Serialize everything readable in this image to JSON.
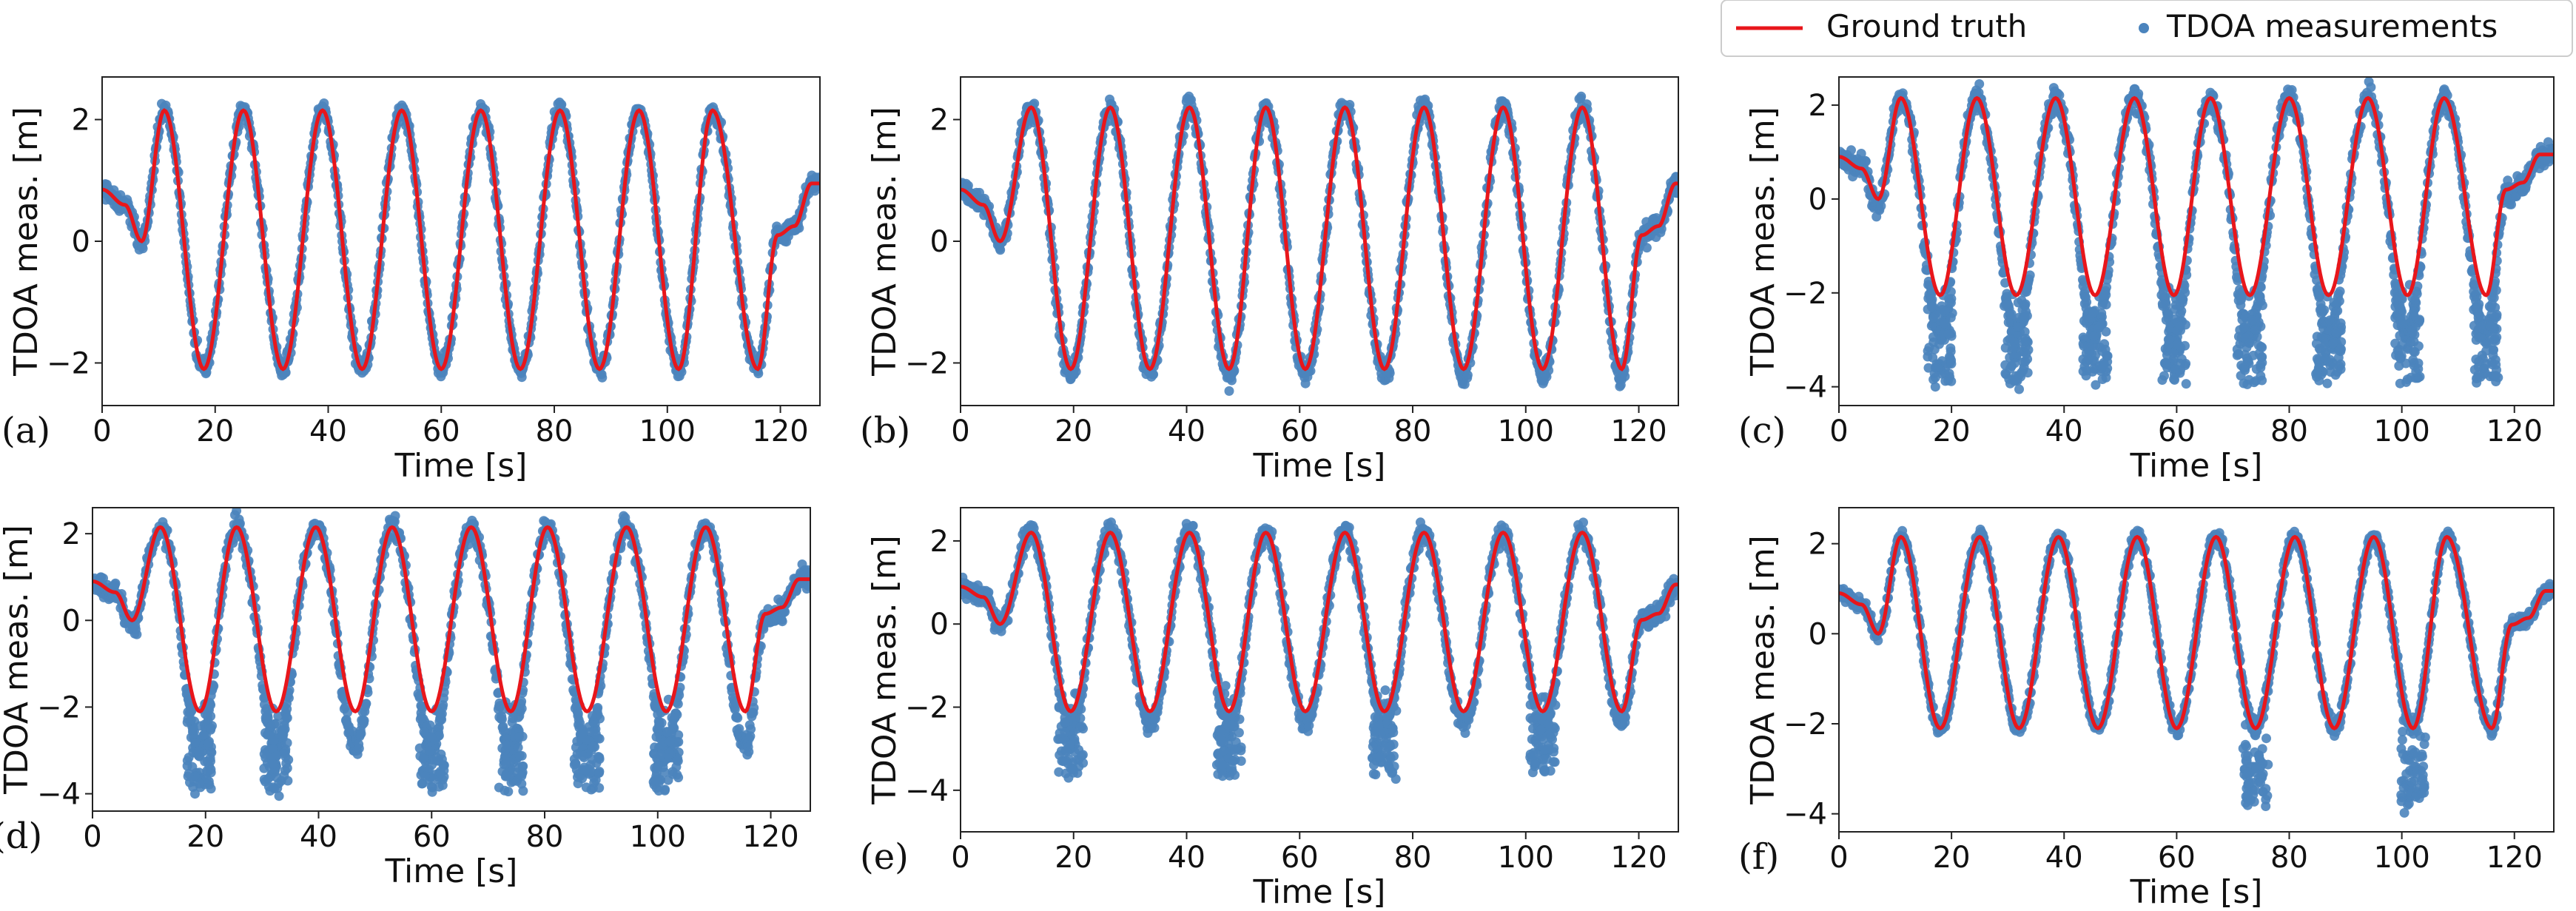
{
  "legend": {
    "items": [
      {
        "label": "Ground truth",
        "kind": "line",
        "color": "#e8161b"
      },
      {
        "label": "TDOA measurements",
        "kind": "marker",
        "color": "#4b84bd"
      }
    ],
    "position": "top-right"
  },
  "colors": {
    "ground_truth": "#e8161b",
    "measurements": "#4b84bd",
    "axes": "#222222"
  },
  "chart_data": [
    {
      "id": "a",
      "panel_label": "(a)",
      "type": "scatter+line",
      "xlabel": "Time [s]",
      "ylabel": "TDOA meas. [m]",
      "xlim": [
        0,
        127
      ],
      "ylim": [
        -2.7,
        2.7
      ],
      "xticks": [
        0,
        20,
        40,
        60,
        80,
        100,
        120
      ],
      "yticks": [
        -2,
        0,
        2
      ],
      "ground_truth": {
        "start_value": 0.85,
        "dip_start": 0.0,
        "peak_times": [
          11,
          25,
          39,
          53,
          67,
          81,
          95,
          108
        ],
        "amplitude": 2.15,
        "trough_times": [
          18,
          32,
          46,
          60,
          74,
          88,
          102,
          116
        ],
        "trough_depth": -2.1,
        "end_flat": 0.1,
        "end_value": 0.95
      },
      "measurements": {
        "offset": 0.0,
        "spread": 0.15,
        "outlier_depth": 0.0,
        "outlier_troughs": []
      }
    },
    {
      "id": "b",
      "panel_label": "(b)",
      "type": "scatter+line",
      "xlabel": "Time [s]",
      "ylabel": "TDOA meas. [m]",
      "xlim": [
        0,
        127
      ],
      "ylim": [
        -2.7,
        2.7
      ],
      "xticks": [
        0,
        20,
        40,
        60,
        80,
        100,
        120
      ],
      "yticks": [
        -2,
        0,
        2
      ],
      "ground_truth": {
        "start_value": 0.85,
        "dip_start": 0.0,
        "peak_times": [
          12.5,
          26.5,
          40.5,
          54,
          68,
          82,
          96,
          110
        ],
        "amplitude": 2.2,
        "trough_times": [
          19.5,
          33.5,
          47.5,
          61,
          75,
          89,
          103,
          117
        ],
        "trough_depth": -2.1,
        "end_flat": 0.1,
        "end_value": 0.95
      },
      "measurements": {
        "offset": -0.1,
        "spread": 0.18,
        "outlier_depth": 0.0,
        "outlier_troughs": []
      }
    },
    {
      "id": "c",
      "panel_label": "(c)",
      "type": "scatter+line",
      "xlabel": "Time [s]",
      "ylabel": "TDOA meas. [m]",
      "xlim": [
        0,
        127
      ],
      "ylim": [
        -4.4,
        2.6
      ],
      "xticks": [
        0,
        20,
        40,
        60,
        80,
        100,
        120
      ],
      "yticks": [
        -4,
        -2,
        0,
        2
      ],
      "ground_truth": {
        "start_value": 0.9,
        "dip_start": 0.0,
        "peak_times": [
          11,
          24.5,
          38.5,
          52.5,
          66,
          80,
          94,
          107.5
        ],
        "amplitude": 2.15,
        "trough_times": [
          18,
          31.5,
          45.5,
          59.5,
          73,
          87,
          101,
          115
        ],
        "trough_depth": -2.05,
        "end_flat": 0.2,
        "end_value": 0.95
      },
      "measurements": {
        "offset": -0.8,
        "spread": 0.25,
        "outlier_depth": -3.9,
        "outlier_troughs": [
          18,
          31.5,
          45.5,
          59.5,
          73,
          87,
          101,
          115
        ]
      }
    },
    {
      "id": "d",
      "panel_label": "(d)",
      "type": "scatter+line",
      "xlabel": "Time [s]",
      "ylabel": "TDOA meas. [m]",
      "xlim": [
        0,
        127
      ],
      "ylim": [
        -4.4,
        2.6
      ],
      "xticks": [
        0,
        20,
        40,
        60,
        80,
        100,
        120
      ],
      "yticks": [
        -4,
        -2,
        0,
        2
      ],
      "ground_truth": {
        "start_value": 0.9,
        "dip_start": 0.0,
        "peak_times": [
          12,
          25.5,
          39.5,
          53,
          67,
          80.5,
          94.5,
          108.5
        ],
        "amplitude": 2.15,
        "trough_times": [
          19,
          32.5,
          46.5,
          60,
          74,
          87.5,
          101.5,
          115.5
        ],
        "trough_depth": -2.1,
        "end_flat": 0.15,
        "end_value": 0.95
      },
      "measurements": {
        "offset": -0.8,
        "spread": 0.25,
        "outlier_depth": -3.9,
        "outlier_troughs": [
          19,
          32.5,
          60,
          74,
          87.5,
          101.5
        ]
      }
    },
    {
      "id": "e",
      "panel_label": "(e)",
      "type": "scatter+line",
      "xlabel": "Time [s]",
      "ylabel": "TDOA meas. [m]",
      "xlim": [
        0,
        127
      ],
      "ylim": [
        -5.0,
        2.8
      ],
      "xticks": [
        0,
        20,
        40,
        60,
        80,
        100,
        120
      ],
      "yticks": [
        -4,
        -2,
        0,
        2
      ],
      "ground_truth": {
        "start_value": 0.9,
        "dip_start": 0.0,
        "peak_times": [
          12.5,
          26.5,
          40.5,
          54,
          68,
          82,
          96,
          110
        ],
        "amplitude": 2.2,
        "trough_times": [
          19.5,
          33.5,
          47.5,
          61,
          75,
          89,
          103,
          117
        ],
        "trough_depth": -2.1,
        "end_flat": 0.1,
        "end_value": 0.95
      },
      "measurements": {
        "offset": -0.3,
        "spread": 0.25,
        "outlier_depth": -3.6,
        "outlier_troughs": [
          19.5,
          47.5,
          75,
          103
        ]
      }
    },
    {
      "id": "f",
      "panel_label": "(f)",
      "type": "scatter+line",
      "xlabel": "Time [s]",
      "ylabel": "TDOA meas. [m]",
      "xlim": [
        0,
        127
      ],
      "ylim": [
        -4.4,
        2.8
      ],
      "xticks": [
        0,
        20,
        40,
        60,
        80,
        100,
        120
      ],
      "yticks": [
        -4,
        -2,
        0,
        2
      ],
      "ground_truth": {
        "start_value": 0.9,
        "dip_start": 0.0,
        "peak_times": [
          11,
          25,
          39,
          53,
          67,
          81,
          95,
          108
        ],
        "amplitude": 2.15,
        "trough_times": [
          18,
          32,
          46,
          60,
          74,
          88,
          102,
          116
        ],
        "trough_depth": -2.1,
        "end_flat": 0.2,
        "end_value": 0.95
      },
      "measurements": {
        "offset": 0.0,
        "spread": 0.15,
        "outlier_depth": -3.8,
        "outlier_troughs": [
          74,
          102
        ]
      }
    }
  ]
}
